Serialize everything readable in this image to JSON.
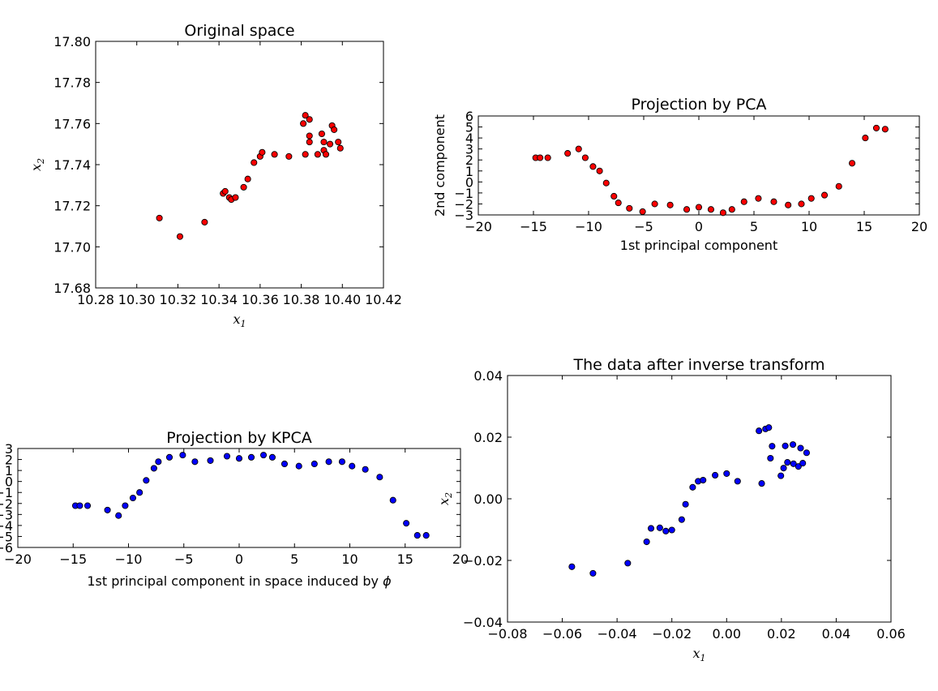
{
  "chart_data": [
    {
      "type": "scatter",
      "title": "Original space",
      "xlabel": "x1",
      "ylabel": "x2",
      "xlim": [
        10.28,
        10.42
      ],
      "ylim": [
        17.68,
        17.8
      ],
      "xticks": [
        "10.28",
        "10.30",
        "10.32",
        "10.34",
        "10.36",
        "10.38",
        "10.40",
        "10.42"
      ],
      "yticks": [
        "17.68",
        "17.70",
        "17.72",
        "17.74",
        "17.76",
        "17.78",
        "17.80"
      ],
      "marker_color": "#ff0000",
      "grid": false,
      "points": [
        [
          10.311,
          17.714
        ],
        [
          10.321,
          17.705
        ],
        [
          10.333,
          17.712
        ],
        [
          10.342,
          17.726
        ],
        [
          10.343,
          17.727
        ],
        [
          10.345,
          17.724
        ],
        [
          10.346,
          17.723
        ],
        [
          10.348,
          17.724
        ],
        [
          10.352,
          17.729
        ],
        [
          10.354,
          17.733
        ],
        [
          10.357,
          17.741
        ],
        [
          10.36,
          17.744
        ],
        [
          10.361,
          17.746
        ],
        [
          10.367,
          17.745
        ],
        [
          10.374,
          17.744
        ],
        [
          10.381,
          17.76
        ],
        [
          10.382,
          17.745
        ],
        [
          10.382,
          17.764
        ],
        [
          10.384,
          17.762
        ],
        [
          10.384,
          17.754
        ],
        [
          10.384,
          17.751
        ],
        [
          10.388,
          17.745
        ],
        [
          10.39,
          17.755
        ],
        [
          10.391,
          17.751
        ],
        [
          10.391,
          17.747
        ],
        [
          10.392,
          17.745
        ],
        [
          10.394,
          17.75
        ],
        [
          10.395,
          17.759
        ],
        [
          10.396,
          17.757
        ],
        [
          10.398,
          17.751
        ],
        [
          10.399,
          17.748
        ]
      ]
    },
    {
      "type": "scatter",
      "title": "Projection by PCA",
      "xlabel": "1st principal component",
      "ylabel": "2nd component",
      "xlim": [
        -20,
        20
      ],
      "ylim": [
        -3,
        6
      ],
      "xticks": [
        "−20",
        "−15",
        "−10",
        "−5",
        "0",
        "5",
        "10",
        "15",
        "20"
      ],
      "yticks": [
        "−3",
        "−2",
        "−1",
        "0",
        "1",
        "2",
        "3",
        "4",
        "5",
        "6"
      ],
      "marker_color": "#ff0000",
      "grid": false,
      "points": [
        [
          -14.8,
          2.2
        ],
        [
          -14.4,
          2.2
        ],
        [
          -13.7,
          2.2
        ],
        [
          -11.9,
          2.6
        ],
        [
          -10.9,
          3.0
        ],
        [
          -10.3,
          2.2
        ],
        [
          -9.6,
          1.4
        ],
        [
          -9.0,
          1.0
        ],
        [
          -8.4,
          -0.1
        ],
        [
          -7.7,
          -1.3
        ],
        [
          -7.3,
          -1.9
        ],
        [
          -6.3,
          -2.4
        ],
        [
          -5.1,
          -2.7
        ],
        [
          -4.0,
          -2.0
        ],
        [
          -2.6,
          -2.1
        ],
        [
          -1.1,
          -2.5
        ],
        [
          0.0,
          -2.3
        ],
        [
          1.1,
          -2.5
        ],
        [
          2.2,
          -2.8
        ],
        [
          3.0,
          -2.5
        ],
        [
          4.1,
          -1.8
        ],
        [
          5.4,
          -1.5
        ],
        [
          6.8,
          -1.8
        ],
        [
          8.1,
          -2.1
        ],
        [
          9.3,
          -2.0
        ],
        [
          10.2,
          -1.5
        ],
        [
          11.4,
          -1.2
        ],
        [
          12.7,
          -0.4
        ],
        [
          13.9,
          1.7
        ],
        [
          15.1,
          4.0
        ],
        [
          16.1,
          4.9
        ],
        [
          16.9,
          4.8
        ]
      ]
    },
    {
      "type": "scatter",
      "title": "Projection by KPCA",
      "xlabel": "1st principal component in space induced by",
      "xlabel_symbol": "ϕ",
      "xlim": [
        -20,
        20
      ],
      "ylim": [
        -6,
        3
      ],
      "xticks": [
        "−20",
        "−15",
        "−10",
        "−5",
        "0",
        "5",
        "10",
        "15",
        "20"
      ],
      "yticks": [
        "−6",
        "−5",
        "−4",
        "−3",
        "−2",
        "−1",
        "0",
        "1",
        "2",
        "3"
      ],
      "marker_color": "#0000ff",
      "grid": false,
      "points": [
        [
          -14.8,
          -2.2
        ],
        [
          -14.4,
          -2.2
        ],
        [
          -13.7,
          -2.2
        ],
        [
          -11.9,
          -2.6
        ],
        [
          -10.9,
          -3.1
        ],
        [
          -10.3,
          -2.2
        ],
        [
          -9.6,
          -1.5
        ],
        [
          -9.0,
          -1.0
        ],
        [
          -8.4,
          0.1
        ],
        [
          -7.7,
          1.2
        ],
        [
          -7.3,
          1.8
        ],
        [
          -6.3,
          2.2
        ],
        [
          -5.1,
          2.4
        ],
        [
          -4.0,
          1.8
        ],
        [
          -2.6,
          1.9
        ],
        [
          -1.1,
          2.3
        ],
        [
          0.0,
          2.1
        ],
        [
          1.1,
          2.2
        ],
        [
          2.2,
          2.4
        ],
        [
          3.0,
          2.2
        ],
        [
          4.1,
          1.6
        ],
        [
          5.4,
          1.4
        ],
        [
          6.8,
          1.6
        ],
        [
          8.1,
          1.8
        ],
        [
          9.3,
          1.8
        ],
        [
          10.2,
          1.4
        ],
        [
          11.4,
          1.1
        ],
        [
          12.7,
          0.4
        ],
        [
          13.9,
          -1.7
        ],
        [
          15.1,
          -3.8
        ],
        [
          16.1,
          -4.9
        ],
        [
          16.9,
          -4.9
        ]
      ]
    },
    {
      "type": "scatter",
      "title": "The data after inverse transform",
      "xlabel": "x1",
      "ylabel": "x2",
      "xlim": [
        -0.08,
        0.06
      ],
      "ylim": [
        -0.05,
        0.04
      ],
      "xticks": [
        "−0.08",
        "−0.06",
        "−0.04",
        "−0.02",
        "0.00",
        "0.02",
        "0.04",
        "0.06"
      ],
      "yticks": [
        "−0.04",
        "−0.02",
        "0.00",
        "0.02",
        "0.04"
      ],
      "marker_color": "#0000ff",
      "grid": false,
      "points": [
        [
          -0.0565,
          -0.0298
        ],
        [
          -0.0488,
          -0.0322
        ],
        [
          -0.0361,
          -0.0285
        ],
        [
          -0.0292,
          -0.0207
        ],
        [
          -0.0276,
          -0.0158
        ],
        [
          -0.0244,
          -0.0156
        ],
        [
          -0.0222,
          -0.0168
        ],
        [
          -0.02,
          -0.0164
        ],
        [
          -0.0164,
          -0.0126
        ],
        [
          -0.015,
          -0.007
        ],
        [
          -0.0124,
          -0.0008
        ],
        [
          -0.0104,
          0.0014
        ],
        [
          -0.0086,
          0.0018
        ],
        [
          -0.0042,
          0.0036
        ],
        [
          0.0,
          0.0042
        ],
        [
          0.004,
          0.0014
        ],
        [
          0.0118,
          0.0198
        ],
        [
          0.0128,
          0.0006
        ],
        [
          0.0142,
          0.0205
        ],
        [
          0.0154,
          0.021
        ],
        [
          0.016,
          0.0098
        ],
        [
          0.0166,
          0.0142
        ],
        [
          0.0198,
          0.0034
        ],
        [
          0.0208,
          0.0062
        ],
        [
          0.0214,
          0.0143
        ],
        [
          0.0222,
          0.0083
        ],
        [
          0.0242,
          0.0148
        ],
        [
          0.0244,
          0.0078
        ],
        [
          0.0262,
          0.0068
        ],
        [
          0.027,
          0.0135
        ],
        [
          0.0278,
          0.008
        ],
        [
          0.0292,
          0.0118
        ]
      ]
    }
  ]
}
